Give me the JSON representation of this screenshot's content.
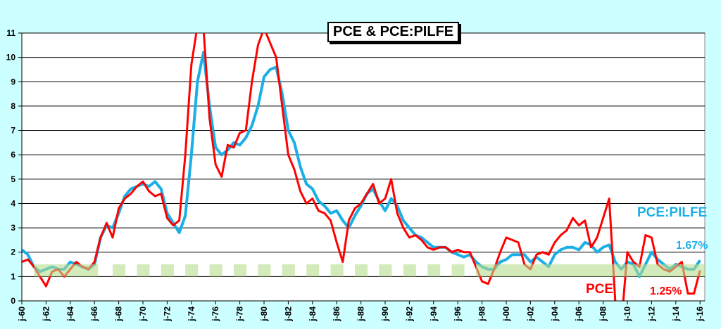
{
  "chart_data": {
    "type": "line",
    "title": "PCE & PCE:PILFE",
    "xlabel": "",
    "ylabel": "",
    "ylim": [
      0,
      11
    ],
    "xlim": [
      1960,
      2016.3
    ],
    "yticks": [
      "0",
      "1",
      "2",
      "3",
      "4",
      "5",
      "6",
      "7",
      "8",
      "9",
      "10",
      "11"
    ],
    "xticks": [
      "j-60",
      "j-62",
      "j-64",
      "j-66",
      "j-68",
      "j-70",
      "j-72",
      "j-74",
      "j-76",
      "j-78",
      "j-80",
      "j-82",
      "j-84",
      "j-86",
      "j-88",
      "j-90",
      "j-92",
      "j-94",
      "j-96",
      "j-98",
      "j-00",
      "j-02",
      "j-04",
      "j-06",
      "j-08",
      "j-10",
      "j-12",
      "j-14",
      "j-16"
    ],
    "grid": true,
    "target_band": {
      "low": 1,
      "high": 1.5,
      "color": "#b5dc8c"
    },
    "series": [
      {
        "name": "PCE",
        "color": "#ff0000",
        "last_value_label": "1.25%",
        "x": [
          1960,
          1960.5,
          1961,
          1961.5,
          1962,
          1962.5,
          1963,
          1963.5,
          1964,
          1964.5,
          1965,
          1965.5,
          1966,
          1966.5,
          1967,
          1967.5,
          1968,
          1968.5,
          1969,
          1969.5,
          1970,
          1970.5,
          1971,
          1971.5,
          1972,
          1972.5,
          1973,
          1973.5,
          1974,
          1974.5,
          1975,
          1975.5,
          1976,
          1976.5,
          1977,
          1977.5,
          1978,
          1978.5,
          1979,
          1979.5,
          1980,
          1980.5,
          1981,
          1981.5,
          1982,
          1982.5,
          1983,
          1983.5,
          1984,
          1984.5,
          1985,
          1985.5,
          1986,
          1986.5,
          1987,
          1987.5,
          1988,
          1988.5,
          1989,
          1989.5,
          1990,
          1990.5,
          1991,
          1991.5,
          1992,
          1992.5,
          1993,
          1993.5,
          1994,
          1994.5,
          1995,
          1995.5,
          1996,
          1996.5,
          1997,
          1997.5,
          1998,
          1998.5,
          1999,
          1999.5,
          2000,
          2000.5,
          2001,
          2001.5,
          2002,
          2002.5,
          2003,
          2003.5,
          2004,
          2004.5,
          2005,
          2005.5,
          2006,
          2006.5,
          2007,
          2007.5,
          2008,
          2008.5,
          2009,
          2009.5,
          2010,
          2010.5,
          2011,
          2011.5,
          2012,
          2012.5,
          2013,
          2013.5,
          2014,
          2014.5,
          2015,
          2015.5,
          2016
        ],
        "values": [
          1.6,
          1.7,
          1.4,
          1.0,
          0.6,
          1.2,
          1.3,
          1.0,
          1.3,
          1.6,
          1.4,
          1.3,
          1.6,
          2.6,
          3.2,
          2.6,
          3.8,
          4.2,
          4.4,
          4.7,
          4.9,
          4.5,
          4.3,
          4.4,
          3.4,
          3.1,
          3.3,
          6.0,
          9.7,
          11.3,
          11.2,
          7.5,
          5.6,
          5.1,
          6.4,
          6.3,
          6.9,
          7.0,
          9.0,
          10.5,
          11.2,
          10.6,
          10.0,
          8.0,
          6.0,
          5.4,
          4.5,
          4.0,
          4.2,
          3.7,
          3.6,
          3.3,
          2.4,
          1.6,
          3.3,
          3.8,
          4.0,
          4.4,
          4.8,
          4.0,
          4.2,
          5.0,
          3.6,
          3.0,
          2.6,
          2.7,
          2.5,
          2.2,
          2.1,
          2.2,
          2.2,
          2.0,
          2.1,
          2.0,
          2.0,
          1.4,
          0.8,
          0.7,
          1.3,
          2.0,
          2.6,
          2.5,
          2.4,
          1.5,
          1.3,
          1.9,
          2.0,
          1.9,
          2.4,
          2.7,
          2.9,
          3.4,
          3.1,
          3.3,
          2.2,
          2.6,
          3.4,
          4.2,
          0.0,
          -1.0,
          2.0,
          1.6,
          1.4,
          2.7,
          2.6,
          1.5,
          1.3,
          1.2,
          1.4,
          1.6,
          0.3,
          0.3,
          1.25
        ]
      },
      {
        "name": "PCE:PILFE",
        "color": "#1aafe6",
        "last_value_label": "1.67%",
        "x": [
          1960,
          1960.5,
          1961,
          1961.5,
          1962,
          1962.5,
          1963,
          1963.5,
          1964,
          1964.5,
          1965,
          1965.5,
          1966,
          1966.5,
          1967,
          1967.5,
          1968,
          1968.5,
          1969,
          1969.5,
          1970,
          1970.5,
          1971,
          1971.5,
          1972,
          1972.5,
          1973,
          1973.5,
          1974,
          1974.5,
          1975,
          1975.5,
          1976,
          1976.5,
          1977,
          1977.5,
          1978,
          1978.5,
          1979,
          1979.5,
          1980,
          1980.5,
          1981,
          1981.5,
          1982,
          1982.5,
          1983,
          1983.5,
          1984,
          1984.5,
          1985,
          1985.5,
          1986,
          1986.5,
          1987,
          1987.5,
          1988,
          1988.5,
          1989,
          1989.5,
          1990,
          1990.5,
          1991,
          1991.5,
          1992,
          1992.5,
          1993,
          1993.5,
          1994,
          1994.5,
          1995,
          1995.5,
          1996,
          1996.5,
          1997,
          1997.5,
          1998,
          1998.5,
          1999,
          1999.5,
          2000,
          2000.5,
          2001,
          2001.5,
          2002,
          2002.5,
          2003,
          2003.5,
          2004,
          2004.5,
          2005,
          2005.5,
          2006,
          2006.5,
          2007,
          2007.5,
          2008,
          2008.5,
          2009,
          2009.5,
          2010,
          2010.5,
          2011,
          2011.5,
          2012,
          2012.5,
          2013,
          2013.5,
          2014,
          2014.5,
          2015,
          2015.5,
          2016
        ],
        "values": [
          2.1,
          1.9,
          1.4,
          1.2,
          1.3,
          1.4,
          1.3,
          1.3,
          1.6,
          1.5,
          1.4,
          1.3,
          1.5,
          2.6,
          3.1,
          3.0,
          3.6,
          4.3,
          4.6,
          4.7,
          4.8,
          4.7,
          4.9,
          4.6,
          3.6,
          3.2,
          2.8,
          3.5,
          6.0,
          9.0,
          10.2,
          8.0,
          6.3,
          6.0,
          6.2,
          6.5,
          6.4,
          6.7,
          7.2,
          8.0,
          9.2,
          9.5,
          9.6,
          8.5,
          7.0,
          6.5,
          5.5,
          4.8,
          4.6,
          4.1,
          3.9,
          3.6,
          3.7,
          3.3,
          3.0,
          3.5,
          3.9,
          4.4,
          4.6,
          4.1,
          3.7,
          4.2,
          3.9,
          3.3,
          3.0,
          2.7,
          2.6,
          2.4,
          2.2,
          2.2,
          2.2,
          2.0,
          1.9,
          1.8,
          1.9,
          1.6,
          1.4,
          1.3,
          1.3,
          1.6,
          1.7,
          1.9,
          1.9,
          1.9,
          1.6,
          1.8,
          1.6,
          1.4,
          1.9,
          2.1,
          2.2,
          2.2,
          2.1,
          2.4,
          2.3,
          2.0,
          2.2,
          2.3,
          1.6,
          1.3,
          1.6,
          1.5,
          1.0,
          1.5,
          2.0,
          1.7,
          1.5,
          1.3,
          1.5,
          1.4,
          1.3,
          1.3,
          1.67
        ]
      }
    ]
  }
}
